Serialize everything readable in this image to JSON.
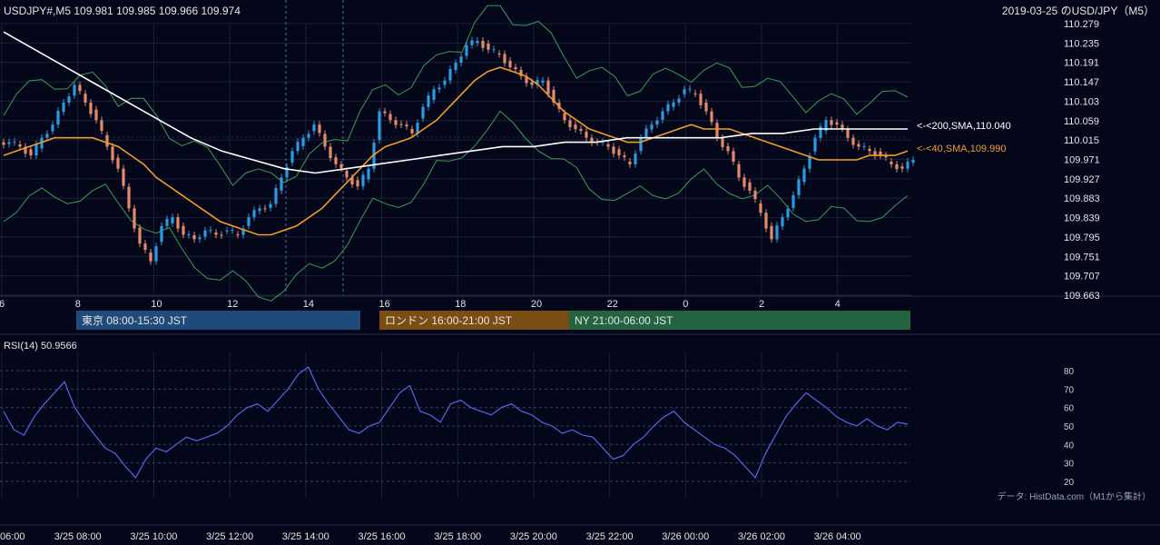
{
  "header": {
    "left_info": "USDJPY#,M5 109.981 109.985 109.966 109.974",
    "right_info": "2019-03-25 のUSD/JPY（M5）"
  },
  "price_panel": {
    "y_ticks": [
      "110.279",
      "110.235",
      "110.191",
      "110.147",
      "110.103",
      "110.059",
      "110.015",
      "109.971",
      "109.927",
      "109.883",
      "109.839",
      "109.795",
      "109.751",
      "109.707",
      "109.663"
    ],
    "x_ticks": [
      "6",
      "8",
      "10",
      "12",
      "14",
      "16",
      "18",
      "20",
      "22",
      "0",
      "2",
      "4"
    ],
    "ma200_label": "<-<200,SMA,110.040",
    "ma40_label": "<-<40,SMA,109.990",
    "current_price": 109.974
  },
  "sessions": [
    {
      "label": "東京 08:00-15:30 JST",
      "color": "#1f4a7a"
    },
    {
      "label": "ロンドン 16:00-21:00 JST",
      "color": "#7a4e12"
    },
    {
      "label": "NY 21:00-06:00 JST",
      "color": "#236342"
    }
  ],
  "rsi_panel": {
    "title": "RSI(14) 50.9566",
    "y_ticks": [
      "80",
      "70",
      "60",
      "50",
      "40",
      "30",
      "20"
    ],
    "source_note": "データ: HistData.com（M1から集計）"
  },
  "time_axis": {
    "labels": [
      "06:00",
      "3/25 08:00",
      "3/25 10:00",
      "3/25 12:00",
      "3/25 14:00",
      "3/25 16:00",
      "3/25 18:00",
      "3/25 20:00",
      "3/25 22:00",
      "3/26 00:00",
      "3/26 02:00",
      "3/26 04:00"
    ]
  },
  "colors": {
    "bull": "#2b9be0",
    "bear": "#e38a6b",
    "ma40": "#f39c2a",
    "ma200": "#ffffff",
    "bb": "#3f9a55",
    "rsi": "#5b63e8"
  },
  "chart_data": [
    {
      "type": "candlestick",
      "title": "USDJPY#,M5",
      "ylim": [
        109.663,
        110.279
      ],
      "x_hour_ticks": [
        "6",
        "8",
        "10",
        "12",
        "14",
        "16",
        "18",
        "20",
        "22",
        "0",
        "2",
        "4"
      ],
      "series": [
        {
          "name": "close",
          "values": [
            110.01,
            110.0,
            109.98,
            110.02,
            110.05,
            110.1,
            110.14,
            110.1,
            110.06,
            110.0,
            109.95,
            109.86,
            109.78,
            109.74,
            109.82,
            109.84,
            109.8,
            109.79,
            109.81,
            109.8,
            109.81,
            109.8,
            109.84,
            109.86,
            109.87,
            109.93,
            109.99,
            110.02,
            110.05,
            110.0,
            109.96,
            109.93,
            109.91,
            109.95,
            110.08,
            110.06,
            110.05,
            110.03,
            110.09,
            110.13,
            110.15,
            110.19,
            110.23,
            110.24,
            110.22,
            110.21,
            110.18,
            110.16,
            110.14,
            110.15,
            110.1,
            110.06,
            110.04,
            110.02,
            110.01,
            110.0,
            109.98,
            109.96,
            110.02,
            110.05,
            110.08,
            110.1,
            110.13,
            110.12,
            110.08,
            110.02,
            109.99,
            109.93,
            109.9,
            109.85,
            109.79,
            109.84,
            109.89,
            109.95,
            110.02,
            110.06,
            110.05,
            110.02,
            110.0,
            109.99,
            109.98,
            109.96,
            109.95,
            109.97
          ]
        },
        {
          "name": "MA40",
          "values": [
            109.98,
            109.99,
            110.0,
            110.01,
            110.02,
            110.02,
            110.02,
            110.02,
            110.01,
            110.0,
            109.98,
            109.96,
            109.93,
            109.91,
            109.89,
            109.87,
            109.85,
            109.83,
            109.82,
            109.81,
            109.8,
            109.8,
            109.81,
            109.82,
            109.84,
            109.86,
            109.89,
            109.92,
            109.95,
            109.98,
            110.0,
            110.01,
            110.02,
            110.04,
            110.06,
            110.09,
            110.12,
            110.15,
            110.17,
            110.18,
            110.17,
            110.16,
            110.14,
            110.11,
            110.08,
            110.06,
            110.04,
            110.03,
            110.02,
            110.01,
            110.01,
            110.02,
            110.03,
            110.04,
            110.05,
            110.04,
            110.04,
            110.04,
            110.03,
            110.02,
            110.01,
            110.0,
            109.99,
            109.98,
            109.97,
            109.97,
            109.97,
            109.97,
            109.98,
            109.98,
            109.98,
            109.99
          ]
        },
        {
          "name": "MA200",
          "values": [
            110.26,
            110.22,
            110.18,
            110.14,
            110.1,
            110.06,
            110.02,
            109.99,
            109.97,
            109.95,
            109.94,
            109.95,
            109.96,
            109.97,
            109.98,
            109.99,
            110.0,
            110.0,
            110.01,
            110.01,
            110.02,
            110.02,
            110.02,
            110.02,
            110.03,
            110.03,
            110.04,
            110.04,
            110.04,
            110.04
          ]
        }
      ]
    },
    {
      "type": "line",
      "title": "RSI(14) 50.9566",
      "ylim": [
        15,
        85
      ],
      "series": [
        {
          "name": "RSI(14)",
          "values": [
            58,
            48,
            45,
            55,
            62,
            68,
            74,
            60,
            52,
            45,
            38,
            35,
            28,
            22,
            32,
            38,
            36,
            40,
            44,
            42,
            44,
            46,
            50,
            56,
            60,
            62,
            58,
            64,
            70,
            78,
            82,
            70,
            62,
            55,
            48,
            46,
            50,
            52,
            60,
            68,
            72,
            58,
            56,
            52,
            62,
            64,
            60,
            58,
            56,
            60,
            62,
            58,
            56,
            52,
            50,
            46,
            48,
            45,
            44,
            38,
            32,
            34,
            40,
            44,
            50,
            55,
            58,
            52,
            48,
            44,
            40,
            38,
            34,
            28,
            22,
            35,
            45,
            55,
            62,
            68,
            64,
            60,
            55,
            52,
            50,
            54,
            50,
            48,
            52,
            51
          ]
        }
      ]
    }
  ]
}
